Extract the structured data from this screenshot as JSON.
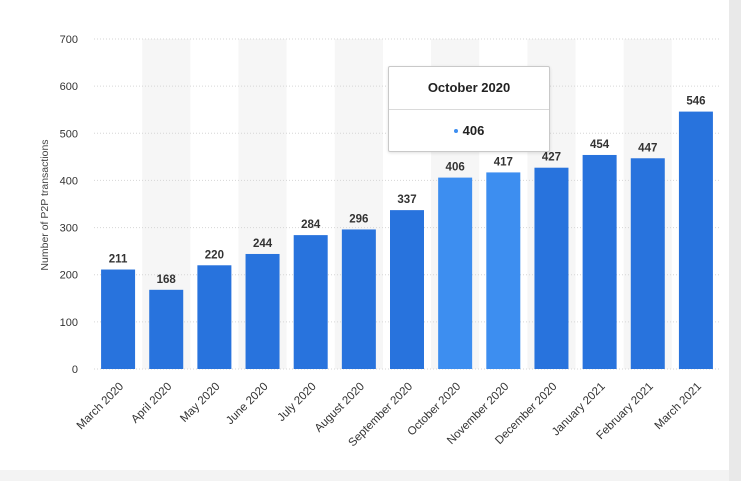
{
  "chart_data": {
    "type": "bar",
    "ylabel": "Number of P2P transactions",
    "xlabel": "",
    "ylim": [
      0,
      700
    ],
    "yticks": [
      0,
      100,
      200,
      300,
      400,
      500,
      600,
      700
    ],
    "grid": true,
    "categories": [
      "March 2020",
      "April 2020",
      "May 2020",
      "June 2020",
      "July 2020",
      "August 2020",
      "September 2020",
      "October 2020",
      "November 2020",
      "December 2020",
      "January 2021",
      "February 2021",
      "March 2021"
    ],
    "values": [
      211,
      168,
      220,
      244,
      284,
      296,
      337,
      406,
      417,
      427,
      454,
      447,
      546
    ],
    "highlighted": [
      "October 2020",
      "November 2020"
    ]
  },
  "colors": {
    "bar": "#2873dd",
    "bar_highlight": "#3d8ef0",
    "tooltip_dot": "#3d8ef0"
  },
  "tooltip": {
    "title": "October 2020",
    "value": "406"
  }
}
